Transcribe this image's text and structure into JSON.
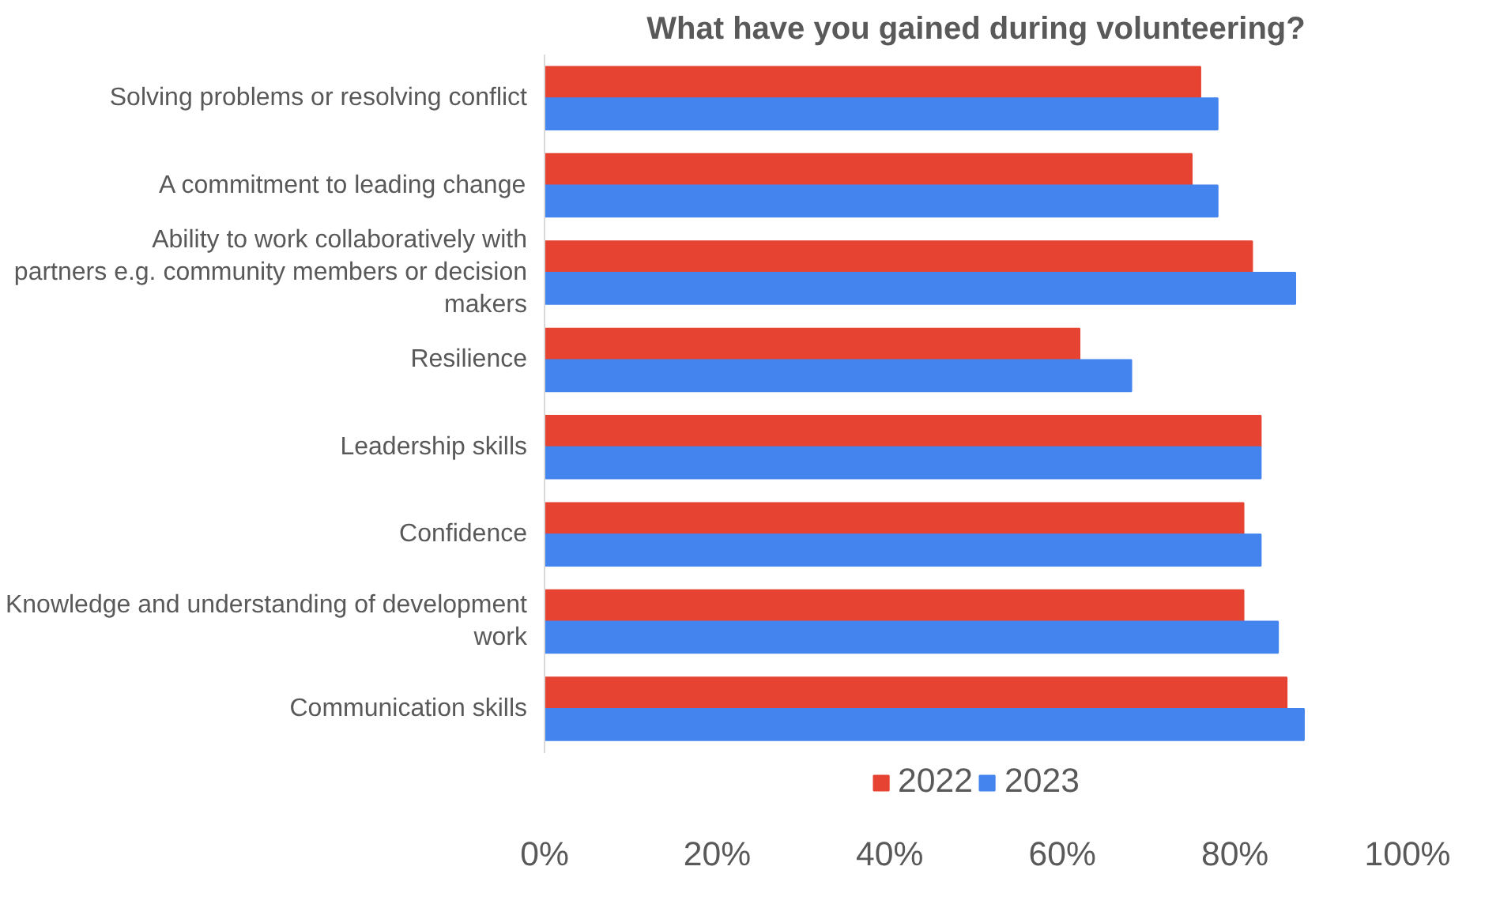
{
  "chart_data": {
    "type": "bar",
    "orientation": "horizontal",
    "title": "What have you gained during volunteering?",
    "categories": [
      "Solving problems or resolving conflict",
      "A commitment to leading change",
      "Ability to work collaboratively with partners e.g. community members or decision makers",
      "Resilience",
      "Leadership skills",
      "Confidence",
      "Knowledge and understanding of development work",
      "Communication skills"
    ],
    "series": [
      {
        "name": "2022",
        "color": "#e64333",
        "values": [
          76,
          75,
          82,
          62,
          83,
          81,
          81,
          86
        ]
      },
      {
        "name": "2023",
        "color": "#4484ee",
        "values": [
          78,
          78,
          87,
          68,
          83,
          83,
          85,
          88
        ]
      }
    ],
    "xlim": [
      0,
      100
    ],
    "xticks": [
      {
        "value": 0,
        "label": "0%"
      },
      {
        "value": 20,
        "label": "20%"
      },
      {
        "value": 40,
        "label": "40%"
      },
      {
        "value": 60,
        "label": "60%"
      },
      {
        "value": 80,
        "label": "80%"
      },
      {
        "value": 100,
        "label": "100%"
      }
    ],
    "legend": "bottom"
  }
}
